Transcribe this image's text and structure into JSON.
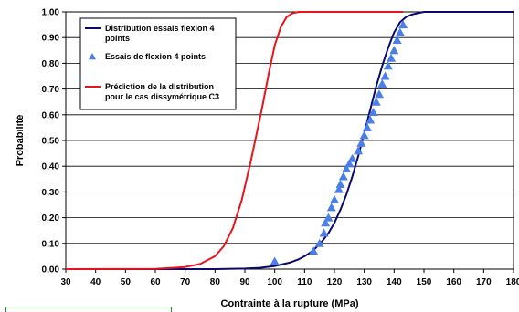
{
  "chart_data": {
    "type": "line",
    "xlabel": "Contrainte à la rupture (MPa)",
    "ylabel": "Probabilité",
    "xlim": [
      30,
      180
    ],
    "ylim": [
      0,
      1
    ],
    "x_ticks": [
      "30",
      "40",
      "50",
      "60",
      "70",
      "80",
      "90",
      "100",
      "110",
      "120",
      "130",
      "140",
      "150",
      "160",
      "170",
      "180"
    ],
    "y_ticks": [
      "0,00",
      "0,10",
      "0,20",
      "0,30",
      "0,40",
      "0,50",
      "0,60",
      "0,70",
      "0,80",
      "0,90",
      "1,00"
    ],
    "grid": "horizontal",
    "legend_position": "top-left",
    "series": [
      {
        "name": "Distribution essais flexion 4 points",
        "kind": "line",
        "color": "#0a0a6e",
        "x": [
          30,
          80,
          90,
          95,
          100,
          105,
          108,
          110,
          112,
          114,
          116,
          118,
          120,
          122,
          124,
          126,
          128,
          130,
          132,
          134,
          136,
          138,
          140,
          142,
          144,
          146,
          148,
          150,
          155,
          160,
          180
        ],
        "y": [
          0,
          0,
          0.002,
          0.005,
          0.012,
          0.025,
          0.038,
          0.05,
          0.065,
          0.085,
          0.11,
          0.14,
          0.18,
          0.23,
          0.29,
          0.36,
          0.44,
          0.53,
          0.62,
          0.71,
          0.79,
          0.86,
          0.92,
          0.96,
          0.98,
          0.99,
          0.995,
          1,
          1,
          1,
          1
        ]
      },
      {
        "name": "Essais de flexion 4 points",
        "kind": "scatter",
        "color": "#4a7ee8",
        "x": [
          100,
          113,
          115,
          116.5,
          117,
          118,
          119,
          120,
          121.5,
          122,
          123,
          124,
          125,
          126,
          128,
          129,
          130,
          131,
          132,
          133,
          134,
          135,
          136,
          137,
          138,
          139,
          140,
          141,
          142,
          143
        ],
        "y": [
          0.03,
          0.07,
          0.1,
          0.14,
          0.18,
          0.2,
          0.24,
          0.27,
          0.31,
          0.33,
          0.36,
          0.39,
          0.41,
          0.43,
          0.46,
          0.49,
          0.52,
          0.55,
          0.58,
          0.61,
          0.65,
          0.68,
          0.72,
          0.75,
          0.79,
          0.82,
          0.85,
          0.89,
          0.92,
          0.95
        ]
      },
      {
        "name": "Prédiction de la distribution pour le cas dissymétrique C3",
        "kind": "line",
        "color": "#e8141e",
        "x": [
          30,
          60,
          70,
          75,
          80,
          83,
          86,
          89,
          92,
          94,
          96,
          98,
          100,
          102,
          104,
          106,
          108,
          110,
          143
        ],
        "y": [
          0,
          0.001,
          0.008,
          0.02,
          0.05,
          0.09,
          0.16,
          0.27,
          0.42,
          0.53,
          0.64,
          0.76,
          0.87,
          0.94,
          0.98,
          0.995,
          1,
          1,
          1
        ]
      }
    ]
  }
}
